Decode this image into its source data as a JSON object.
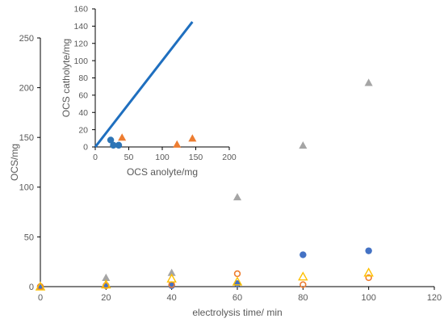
{
  "chart_data": [
    {
      "type": "scatter",
      "xlabel": "electrolysis time/ min",
      "ylabel": "OCS/mg",
      "xlim": [
        0,
        120
      ],
      "ylim": [
        0,
        250
      ],
      "xticks": [
        0,
        20,
        40,
        60,
        80,
        100,
        120
      ],
      "yticks": [
        0,
        50,
        100,
        150,
        200,
        250
      ],
      "grid": false,
      "series": [
        {
          "marker": "triangle-filled",
          "color": "#A5A5A5",
          "points": [
            [
              0,
              0
            ],
            [
              20,
              9
            ],
            [
              40,
              14
            ],
            [
              60,
              90
            ],
            [
              80,
              142
            ],
            [
              100,
              205
            ]
          ]
        },
        {
          "marker": "circle-filled",
          "color": "#4472C4",
          "points": [
            [
              0,
              0
            ],
            [
              20,
              1
            ],
            [
              40,
              1
            ],
            [
              60,
              3
            ],
            [
              80,
              32
            ],
            [
              100,
              36
            ]
          ]
        },
        {
          "marker": "circle-open",
          "color": "#ED7D31",
          "points": [
            [
              0,
              0
            ],
            [
              20,
              1
            ],
            [
              40,
              2
            ],
            [
              60,
              13
            ],
            [
              80,
              2
            ],
            [
              100,
              9
            ]
          ]
        },
        {
          "marker": "triangle-open",
          "color": "#FFC000",
          "points": [
            [
              0,
              0
            ],
            [
              20,
              2
            ],
            [
              40,
              8
            ],
            [
              60,
              5
            ],
            [
              80,
              10
            ],
            [
              100,
              14
            ]
          ]
        }
      ]
    },
    {
      "type": "scatter",
      "xlabel": "OCS anolyte/mg",
      "ylabel": "OCS catholyte/mg",
      "xlim": [
        0,
        200
      ],
      "ylim": [
        0,
        160
      ],
      "xticks": [
        0,
        50,
        100,
        150,
        200
      ],
      "yticks": [
        0,
        20,
        40,
        60,
        80,
        100,
        120,
        140,
        160
      ],
      "grid": false,
      "line": {
        "color": "#1F6FBF",
        "points": [
          [
            0,
            0
          ],
          [
            145,
            145
          ]
        ]
      },
      "series": [
        {
          "marker": "circle-filled",
          "color": "#2E75B6",
          "points": [
            [
              23,
              8
            ],
            [
              27,
              2
            ],
            [
              35,
              2
            ]
          ]
        },
        {
          "marker": "triangle-filled",
          "color": "#ED7D31",
          "points": [
            [
              40,
              11
            ],
            [
              122,
              3
            ],
            [
              145,
              10
            ]
          ]
        }
      ]
    }
  ]
}
